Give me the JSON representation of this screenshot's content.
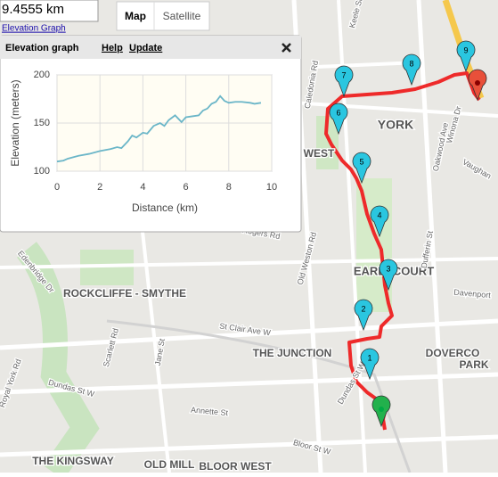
{
  "distance": "9.4555 km",
  "elevation_link": "Elevation Graph",
  "map_buttons": [
    "Map",
    "Satellite"
  ],
  "panel": {
    "title": "Elevation graph",
    "links": [
      "Help",
      "Update"
    ]
  },
  "markers": [
    "1",
    "2",
    "3",
    "4",
    "5",
    "6",
    "7",
    "8",
    "9"
  ],
  "map_labels": [
    "YORK",
    "N WEST",
    "EARLSCOURT",
    "ROCKCLIFFE - SMYTHE",
    "THE JUNCTION",
    "DOVERCO",
    "PARK",
    "THE KINGSWAY",
    "OLD MILL",
    "BLOOR WEST",
    "Keele St",
    "Caledonia Rd",
    "Rogers Rd",
    "Old Weston Rd",
    "Dufferin St",
    "Oakwood Ave",
    "Winona Dr",
    "Vaughan",
    "Davenport",
    "St Clair Ave W",
    "Scarlett Rd",
    "Jane St",
    "Dundas St W",
    "Annette St",
    "Edenbridge Dr",
    "Royal York Rd",
    "Bloor St W",
    "Dundas St W"
  ],
  "chart_data": {
    "type": "line",
    "xlabel": "Distance (km)",
    "ylabel": "Elevation (meters)",
    "xlim": [
      0,
      10
    ],
    "ylim": [
      100,
      200
    ],
    "xticks": [
      0,
      2,
      4,
      6,
      8,
      10
    ],
    "yticks": [
      100,
      150,
      200
    ],
    "grid": true,
    "series": [
      {
        "color": "#6bb6c8",
        "x": [
          0,
          0.3,
          0.5,
          1,
          1.5,
          2,
          2.5,
          2.8,
          3,
          3.3,
          3.5,
          3.7,
          4,
          4.2,
          4.5,
          4.8,
          5,
          5.2,
          5.5,
          5.8,
          6,
          6.3,
          6.6,
          6.8,
          7,
          7.2,
          7.4,
          7.6,
          7.8,
          8,
          8.3,
          8.6,
          9,
          9.2,
          9.5
        ],
        "values": [
          110,
          111,
          113,
          116,
          118,
          121,
          123,
          125,
          124,
          131,
          137,
          135,
          140,
          139,
          147,
          150,
          147,
          153,
          158,
          151,
          156,
          157,
          158,
          163,
          165,
          170,
          172,
          178,
          173,
          171,
          172,
          172,
          171,
          170,
          171
        ]
      }
    ]
  }
}
